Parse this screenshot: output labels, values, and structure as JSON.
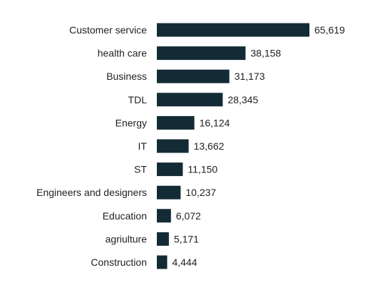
{
  "chart_data": {
    "type": "bar",
    "orientation": "horizontal",
    "categories": [
      "Customer service",
      "health care",
      "Business",
      "TDL",
      "Energy",
      "IT",
      "ST",
      "Engineers and designers",
      "Education",
      "agriulture",
      "Construction"
    ],
    "values": [
      65619,
      38158,
      31173,
      28345,
      16124,
      13662,
      11150,
      10237,
      6072,
      5171,
      4444
    ],
    "value_labels": [
      "65,619",
      "38,158",
      "31,173",
      "28,345",
      "16,124",
      "13,662",
      "11,150",
      "10,237",
      "6,072",
      "5,171",
      "4,444"
    ],
    "xlim": [
      0,
      65619
    ],
    "bar_color": "#132b35",
    "grid": false,
    "legend": "none",
    "title": "",
    "xlabel": "",
    "ylabel": ""
  }
}
